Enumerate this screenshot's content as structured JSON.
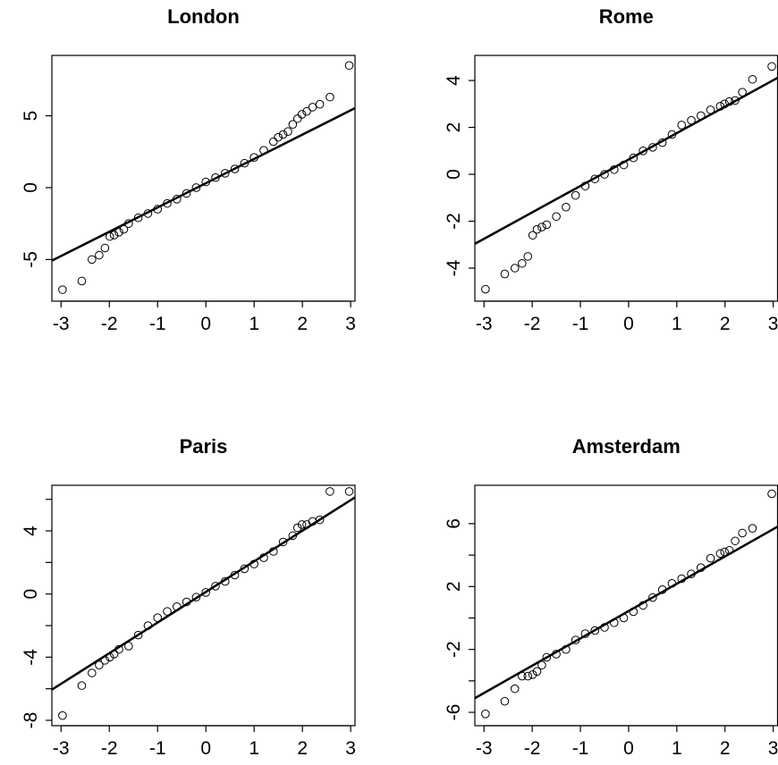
{
  "chart_data": [
    {
      "type": "scatter",
      "title": "London",
      "color": "#000000",
      "x": [
        -2.97,
        -2.57,
        -2.36,
        -2.21,
        -2.09,
        -1.99,
        -1.9,
        -1.8,
        -1.7,
        -1.6,
        -1.4,
        -1.2,
        -1.0,
        -0.8,
        -0.6,
        -0.4,
        -0.2,
        0,
        0.2,
        0.4,
        0.6,
        0.8,
        1.0,
        1.2,
        1.4,
        1.5,
        1.6,
        1.7,
        1.8,
        1.9,
        1.99,
        2.09,
        2.21,
        2.36,
        2.57,
        2.97
      ],
      "values": [
        -7.1,
        -6.5,
        -5.0,
        -4.7,
        -4.2,
        -3.4,
        -3.3,
        -3.1,
        -2.9,
        -2.5,
        -2.1,
        -1.8,
        -1.5,
        -1.1,
        -0.8,
        -0.4,
        0,
        0.4,
        0.7,
        1.0,
        1.3,
        1.7,
        2.1,
        2.6,
        3.2,
        3.5,
        3.7,
        3.9,
        4.4,
        4.8,
        5.1,
        5.3,
        5.6,
        5.8,
        6.3,
        8.5
      ],
      "abline": {
        "intercept": 0.31,
        "slope": 1.69
      },
      "xlim": [
        -3.19,
        3.09
      ],
      "ylim": [
        -7.9,
        9.2
      ],
      "xticks": [
        -3,
        -2,
        -1,
        0,
        1,
        2,
        3
      ],
      "yticks": [
        -5,
        0,
        5
      ]
    },
    {
      "type": "scatter",
      "title": "Rome",
      "color": "#000000",
      "x": [
        -2.97,
        -2.57,
        -2.36,
        -2.21,
        -2.09,
        -1.99,
        -1.9,
        -1.8,
        -1.7,
        -1.5,
        -1.3,
        -1.1,
        -0.9,
        -0.7,
        -0.5,
        -0.3,
        -0.1,
        0.1,
        0.3,
        0.5,
        0.7,
        0.9,
        1.1,
        1.3,
        1.5,
        1.7,
        1.9,
        1.99,
        2.09,
        2.21,
        2.36,
        2.57,
        2.97
      ],
      "values": [
        -4.9,
        -4.25,
        -4.0,
        -3.8,
        -3.5,
        -2.6,
        -2.35,
        -2.25,
        -2.15,
        -1.8,
        -1.4,
        -0.9,
        -0.5,
        -0.2,
        0,
        0.2,
        0.4,
        0.7,
        1.0,
        1.15,
        1.35,
        1.7,
        2.1,
        2.3,
        2.5,
        2.75,
        2.9,
        3.0,
        3.1,
        3.15,
        3.5,
        4.05,
        4.6
      ],
      "abline": {
        "intercept": 0.63,
        "slope": 1.127
      },
      "xlim": [
        -3.19,
        3.09
      ],
      "ylim": [
        -5.41,
        5.07
      ],
      "xticks": [
        -3,
        -2,
        -1,
        0,
        1,
        2,
        3
      ],
      "yticks": [
        -4,
        -2,
        0,
        2,
        4
      ]
    },
    {
      "type": "scatter",
      "title": "Paris",
      "color": "#000000",
      "x": [
        -2.97,
        -2.57,
        -2.36,
        -2.21,
        -2.09,
        -1.99,
        -1.9,
        -1.8,
        -1.6,
        -1.4,
        -1.2,
        -1.0,
        -0.8,
        -0.6,
        -0.4,
        -0.2,
        0,
        0.2,
        0.4,
        0.6,
        0.8,
        1.0,
        1.2,
        1.4,
        1.6,
        1.8,
        1.9,
        1.99,
        2.09,
        2.21,
        2.36,
        2.57,
        2.97
      ],
      "values": [
        -7.7,
        -5.8,
        -5.0,
        -4.5,
        -4.2,
        -4.0,
        -3.8,
        -3.5,
        -3.3,
        -2.6,
        -2.0,
        -1.5,
        -1.1,
        -0.8,
        -0.5,
        -0.2,
        0.1,
        0.5,
        0.8,
        1.2,
        1.6,
        1.9,
        2.3,
        2.7,
        3.3,
        3.7,
        4.2,
        4.4,
        4.4,
        4.6,
        4.7,
        6.5,
        6.5
      ],
      "abline": {
        "intercept": 0.13,
        "slope": 1.94
      },
      "xlim": [
        -3.19,
        3.09
      ],
      "ylim": [
        -8.34,
        6.89
      ],
      "xticks": [
        -3,
        -2,
        -1,
        0,
        1,
        2,
        3
      ],
      "yticks": [
        -8,
        {
          "value": -6,
          "label": null
        },
        -4,
        {
          "value": -2,
          "label": null
        },
        0,
        {
          "value": 2,
          "label": null
        },
        4,
        {
          "value": 6,
          "label": null
        }
      ]
    },
    {
      "type": "scatter",
      "title": "Amsterdam",
      "color": "#000000",
      "x": [
        -2.97,
        -2.57,
        -2.36,
        -2.21,
        -2.09,
        -1.99,
        -1.9,
        -1.8,
        -1.7,
        -1.5,
        -1.3,
        -1.1,
        -0.9,
        -0.7,
        -0.5,
        -0.3,
        -0.1,
        0.1,
        0.3,
        0.5,
        0.7,
        0.9,
        1.1,
        1.3,
        1.5,
        1.7,
        1.9,
        1.99,
        2.09,
        2.21,
        2.36,
        2.57,
        2.97
      ],
      "values": [
        -6.1,
        -5.3,
        -4.5,
        -3.7,
        -3.7,
        -3.6,
        -3.4,
        -3.0,
        -2.5,
        -2.3,
        -2.0,
        -1.4,
        -1.0,
        -0.8,
        -0.6,
        -0.3,
        0,
        0.4,
        0.8,
        1.3,
        1.8,
        2.2,
        2.5,
        2.8,
        3.2,
        3.8,
        4.1,
        4.2,
        4.3,
        4.9,
        5.4,
        5.7,
        7.9
      ],
      "abline": {
        "intercept": 0.44,
        "slope": 1.737
      },
      "xlim": [
        -3.19,
        3.09
      ],
      "ylim": [
        -6.85,
        8.44
      ],
      "xticks": [
        -3,
        -2,
        -1,
        0,
        1,
        2,
        3
      ],
      "yticks": [
        -6,
        {
          "value": -4,
          "label": null
        },
        -2,
        {
          "value": 0,
          "label": null
        },
        2,
        {
          "value": 4,
          "label": null
        },
        6
      ]
    }
  ]
}
